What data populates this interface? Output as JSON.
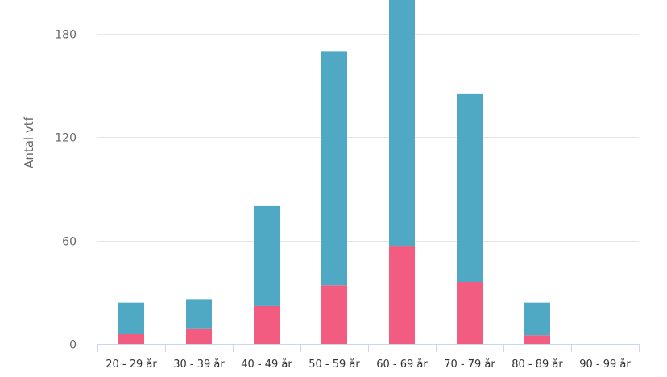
{
  "chart_data": {
    "type": "bar",
    "stacked": true,
    "title": "",
    "xlabel": "",
    "ylabel": "Antal vtf",
    "categories": [
      "20 - 29 år",
      "30 - 39 år",
      "40 - 49 år",
      "50 - 59 år",
      "60 - 69 år",
      "70 - 79 år",
      "80 - 89 år",
      "90 - 99 år"
    ],
    "series": [
      {
        "color": "#f15c80",
        "values": [
          6,
          9,
          22,
          34,
          57,
          36,
          5,
          0
        ]
      },
      {
        "color": "#4fa8c4",
        "values": [
          18,
          17,
          58,
          136,
          153,
          109,
          19,
          0
        ]
      }
    ],
    "ylim": [
      0,
      200
    ],
    "yticks": [
      0,
      60,
      120,
      180
    ],
    "grid": true,
    "legend": "none"
  }
}
